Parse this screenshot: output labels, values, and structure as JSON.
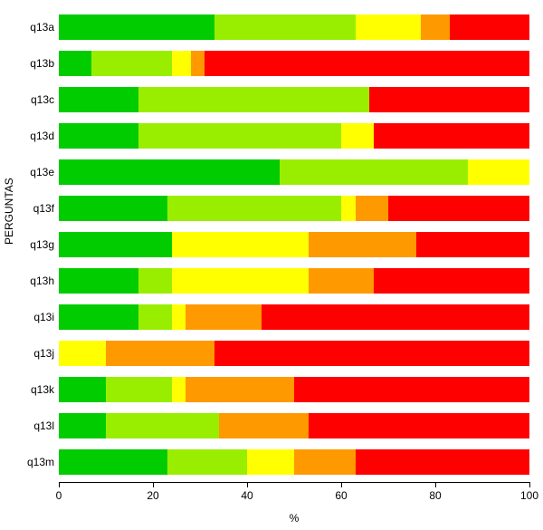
{
  "chart": {
    "type": "stacked-bar-horizontal",
    "background_color": "#ffffff",
    "ylabel": "PERGUNTAS",
    "xlabel": "%",
    "label_fontsize": 12,
    "tick_fontsize": 12,
    "xlim": [
      0,
      100
    ],
    "xtick_step": 20,
    "xticks": [
      0,
      20,
      40,
      60,
      80,
      100
    ],
    "bar_thickness_ratio": 0.72,
    "row_gap_ratio": 0.28,
    "segment_colors": [
      "#00cc00",
      "#99ee00",
      "#ffff00",
      "#ff9900",
      "#ff0000"
    ],
    "axis_color": "#000000",
    "categories": [
      "q13a",
      "q13b",
      "q13c",
      "q13d",
      "q13e",
      "q13f",
      "q13g",
      "q13h",
      "q13i",
      "q13j",
      "q13k",
      "q13l",
      "q13m"
    ],
    "series": [
      [
        33,
        30,
        14,
        6,
        17
      ],
      [
        7,
        17,
        4,
        3,
        69
      ],
      [
        17,
        49,
        0,
        0,
        34
      ],
      [
        17,
        43,
        7,
        0,
        33
      ],
      [
        47,
        40,
        13,
        0,
        0
      ],
      [
        23,
        37,
        3,
        7,
        30
      ],
      [
        24,
        0,
        29,
        23,
        24
      ],
      [
        17,
        7,
        29,
        14,
        33
      ],
      [
        17,
        7,
        3,
        16,
        57
      ],
      [
        0,
        0,
        10,
        23,
        67
      ],
      [
        10,
        14,
        3,
        23,
        50
      ],
      [
        10,
        24,
        0,
        19,
        47
      ],
      [
        23,
        17,
        10,
        13,
        37
      ]
    ]
  }
}
